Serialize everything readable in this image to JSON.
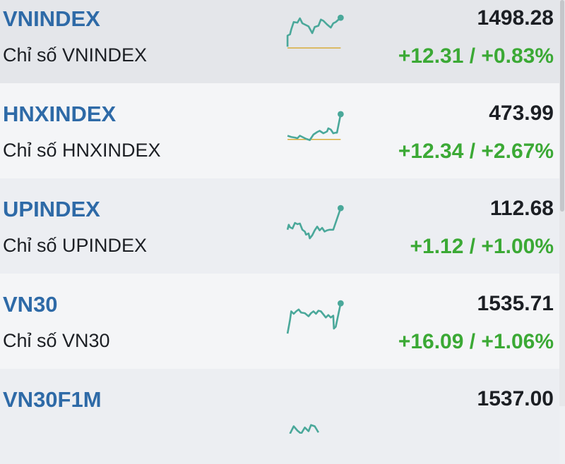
{
  "colors": {
    "symbol": "#2e6aa7",
    "up": "#3ba935",
    "spark": "#4aa89a",
    "reference": "#d4a017"
  },
  "indices": [
    {
      "symbol": "VNINDEX",
      "name": "Chỉ số VNINDEX",
      "price": "1498.28",
      "change": "+12.31 / +0.83%"
    },
    {
      "symbol": "HNXINDEX",
      "name": "Chỉ số HNXINDEX",
      "price": "473.99",
      "change": "+12.34 / +2.67%"
    },
    {
      "symbol": "UPINDEX",
      "name": "Chỉ số UPINDEX",
      "price": "112.68",
      "change": "+1.12 / +1.00%"
    },
    {
      "symbol": "VN30",
      "name": "Chỉ số VN30",
      "price": "1535.71",
      "change": "+16.09 / +1.06%"
    },
    {
      "symbol": "VN30F1M",
      "name": "",
      "price": "1537.00",
      "change": ""
    }
  ]
}
